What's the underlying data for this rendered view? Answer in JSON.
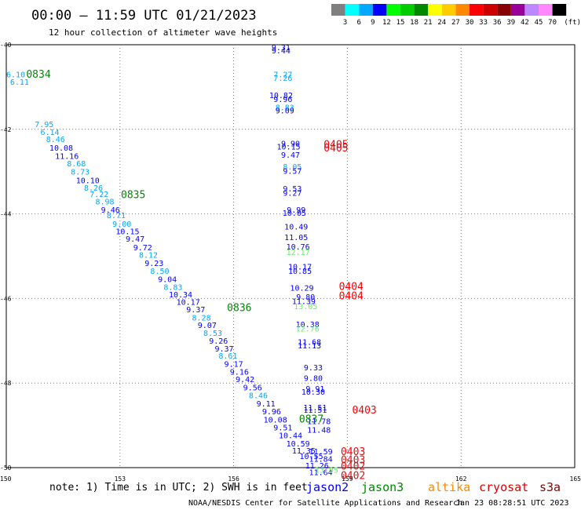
{
  "chart_data": {
    "type": "scatter",
    "title": "00:00 – 11:59 UTC 01/21/2023",
    "subtitle": "12 hour collection of altimeter wave heights",
    "x_ticks": [
      "150",
      "153",
      "156",
      "159",
      "162",
      "165"
    ],
    "y_ticks": [
      "-40",
      "-42",
      "-44",
      "-46",
      "-48",
      "-50"
    ],
    "xlim": [
      150,
      165
    ],
    "ylim": [
      -50,
      -40
    ],
    "grid": true,
    "colorbar": {
      "labels": [
        "3",
        "6",
        "9",
        "12",
        "15",
        "18",
        "21",
        "24",
        "27",
        "30",
        "33",
        "36",
        "39",
        "42",
        "45",
        "70"
      ],
      "unit": "(ft)",
      "colors": [
        "#7f7f7f",
        "#00ffff",
        "#00a8ff",
        "#0000ff",
        "#00ff00",
        "#00cc00",
        "#008800",
        "#ffff00",
        "#ffcc00",
        "#ff8800",
        "#ff0000",
        "#cc0000",
        "#880000",
        "#990099",
        "#bb88ff",
        "#ff88ff",
        "#000000"
      ]
    },
    "wave_labels": [
      {
        "text": "6.10",
        "x": 150.25,
        "y": -40.77,
        "c": "#00a8ff"
      },
      {
        "text": "6.11",
        "x": 150.35,
        "y": -40.95,
        "c": "#00a8ff"
      },
      {
        "text": "7.95",
        "x": 151.0,
        "y": -41.95,
        "c": "#00a8ff"
      },
      {
        "text": "6.14",
        "x": 151.15,
        "y": -42.13,
        "c": "#00a8ff"
      },
      {
        "text": "8.46",
        "x": 151.3,
        "y": -42.3,
        "c": "#00a8ff"
      },
      {
        "text": "10.08",
        "x": 151.45,
        "y": -42.5,
        "c": "#0000ff"
      },
      {
        "text": "11.16",
        "x": 151.6,
        "y": -42.7,
        "c": "#0000ff"
      },
      {
        "text": "8.68",
        "x": 151.85,
        "y": -42.88,
        "c": "#00a8ff"
      },
      {
        "text": "8.73",
        "x": 151.95,
        "y": -43.07,
        "c": "#00a8ff"
      },
      {
        "text": "10.10",
        "x": 152.15,
        "y": -43.27,
        "c": "#0000ff"
      },
      {
        "text": "8.26",
        "x": 152.3,
        "y": -43.45,
        "c": "#00a8ff"
      },
      {
        "text": "7.22",
        "x": 152.45,
        "y": -43.6,
        "c": "#00a8ff"
      },
      {
        "text": "8.98",
        "x": 152.6,
        "y": -43.78,
        "c": "#00a8ff"
      },
      {
        "text": "9.46",
        "x": 152.75,
        "y": -43.97,
        "c": "#0000ff"
      },
      {
        "text": "8.71",
        "x": 152.9,
        "y": -44.1,
        "c": "#00a8ff"
      },
      {
        "text": "9.00",
        "x": 153.05,
        "y": -44.3,
        "c": "#00a8ff"
      },
      {
        "text": "10.15",
        "x": 153.2,
        "y": -44.48,
        "c": "#0000ff"
      },
      {
        "text": "9.47",
        "x": 153.4,
        "y": -44.66,
        "c": "#0000ff"
      },
      {
        "text": "9.72",
        "x": 153.6,
        "y": -44.86,
        "c": "#0000ff"
      },
      {
        "text": "8.12",
        "x": 153.75,
        "y": -45.04,
        "c": "#00a8ff"
      },
      {
        "text": "9.23",
        "x": 153.9,
        "y": -45.23,
        "c": "#0000ff"
      },
      {
        "text": "8.50",
        "x": 154.05,
        "y": -45.42,
        "c": "#00a8ff"
      },
      {
        "text": "9.04",
        "x": 154.25,
        "y": -45.61,
        "c": "#0000ff"
      },
      {
        "text": "8.83",
        "x": 154.4,
        "y": -45.8,
        "c": "#00a8ff"
      },
      {
        "text": "10.34",
        "x": 154.6,
        "y": -45.97,
        "c": "#0000ff"
      },
      {
        "text": "10.17",
        "x": 154.8,
        "y": -46.15,
        "c": "#0000ff"
      },
      {
        "text": "9.37",
        "x": 155.0,
        "y": -46.33,
        "c": "#0000ff"
      },
      {
        "text": "8.28",
        "x": 155.15,
        "y": -46.52,
        "c": "#00a8ff"
      },
      {
        "text": "9.07",
        "x": 155.3,
        "y": -46.7,
        "c": "#0000ff"
      },
      {
        "text": "8.53",
        "x": 155.45,
        "y": -46.88,
        "c": "#00a8ff"
      },
      {
        "text": "9.26",
        "x": 155.6,
        "y": -47.07,
        "c": "#0000ff"
      },
      {
        "text": "9.37",
        "x": 155.75,
        "y": -47.25,
        "c": "#0000ff"
      },
      {
        "text": "8.61",
        "x": 155.85,
        "y": -47.42,
        "c": "#00a8ff"
      },
      {
        "text": "9.17",
        "x": 156.0,
        "y": -47.62,
        "c": "#0000ff"
      },
      {
        "text": "9.16",
        "x": 156.15,
        "y": -47.8,
        "c": "#0000ff"
      },
      {
        "text": "9.42",
        "x": 156.3,
        "y": -47.98,
        "c": "#0000ff"
      },
      {
        "text": "9.56",
        "x": 156.5,
        "y": -48.17,
        "c": "#0000ff"
      },
      {
        "text": "8.46",
        "x": 156.65,
        "y": -48.36,
        "c": "#00a8ff"
      },
      {
        "text": "9.11",
        "x": 156.85,
        "y": -48.55,
        "c": "#0000ff"
      },
      {
        "text": "9.96",
        "x": 157.0,
        "y": -48.74,
        "c": "#0000ff"
      },
      {
        "text": "10.08",
        "x": 157.1,
        "y": -48.93,
        "c": "#0000ff"
      },
      {
        "text": "9.51",
        "x": 157.3,
        "y": -49.12,
        "c": "#0000ff"
      },
      {
        "text": "10.44",
        "x": 157.5,
        "y": -49.3,
        "c": "#0000ff"
      },
      {
        "text": "10.59",
        "x": 157.7,
        "y": -49.5,
        "c": "#0000ff"
      },
      {
        "text": "11.35",
        "x": 157.85,
        "y": -49.67,
        "c": "#0000ff"
      },
      {
        "text": "10.55",
        "x": 158.05,
        "y": -49.8,
        "c": "#0000ff"
      },
      {
        "text": "11.26",
        "x": 158.2,
        "y": -50.02,
        "c": "#0000ff"
      },
      {
        "text": "11.64",
        "x": 158.3,
        "y": -50.18,
        "c": "#0000ff"
      },
      {
        "text": "9.31",
        "x": 157.25,
        "y": -40.13,
        "c": "#0000ff"
      },
      {
        "text": "9.44",
        "x": 157.25,
        "y": -40.2,
        "c": "#0000ff"
      },
      {
        "text": "7.27",
        "x": 157.3,
        "y": -40.77,
        "c": "#00a8ff"
      },
      {
        "text": "7.26",
        "x": 157.3,
        "y": -40.85,
        "c": "#00a8ff"
      },
      {
        "text": "10.82",
        "x": 157.25,
        "y": -41.26,
        "c": "#0000ff"
      },
      {
        "text": "9.96",
        "x": 157.3,
        "y": -41.35,
        "c": "#0000ff"
      },
      {
        "text": "8.83",
        "x": 157.35,
        "y": -41.55,
        "c": "#00a8ff"
      },
      {
        "text": "9.09",
        "x": 157.35,
        "y": -41.62,
        "c": "#0000ff"
      },
      {
        "text": "9.90",
        "x": 157.5,
        "y": -42.4,
        "c": "#0000ff"
      },
      {
        "text": "10.15",
        "x": 157.45,
        "y": -42.48,
        "c": "#0000ff"
      },
      {
        "text": "9.47",
        "x": 157.5,
        "y": -42.67,
        "c": "#0000ff"
      },
      {
        "text": "8.05",
        "x": 157.55,
        "y": -42.95,
        "c": "#00a8ff"
      },
      {
        "text": "9.57",
        "x": 157.55,
        "y": -43.05,
        "c": "#0000ff"
      },
      {
        "text": "9.53",
        "x": 157.55,
        "y": -43.47,
        "c": "#0000ff"
      },
      {
        "text": "9.27",
        "x": 157.55,
        "y": -43.57,
        "c": "#0000ff"
      },
      {
        "text": "9.99",
        "x": 157.65,
        "y": -43.97,
        "c": "#0000ff"
      },
      {
        "text": "10.05",
        "x": 157.6,
        "y": -44.04,
        "c": "#0000ff"
      },
      {
        "text": "10.49",
        "x": 157.65,
        "y": -44.37,
        "c": "#0000ff"
      },
      {
        "text": "11.05",
        "x": 157.65,
        "y": -44.62,
        "c": "#0000ff"
      },
      {
        "text": "10.76",
        "x": 157.7,
        "y": -44.84,
        "c": "#0000ff"
      },
      {
        "text": "12.17",
        "x": 157.7,
        "y": -44.97,
        "c": "#66ee66"
      },
      {
        "text": "10.17",
        "x": 157.75,
        "y": -45.32,
        "c": "#0000ff"
      },
      {
        "text": "10.85",
        "x": 157.75,
        "y": -45.42,
        "c": "#0000ff"
      },
      {
        "text": "10.29",
        "x": 157.8,
        "y": -45.82,
        "c": "#0000ff"
      },
      {
        "text": "9.80",
        "x": 157.9,
        "y": -46.03,
        "c": "#0000ff"
      },
      {
        "text": "11.39",
        "x": 157.85,
        "y": -46.13,
        "c": "#0000ff"
      },
      {
        "text": "13.05",
        "x": 157.9,
        "y": -46.25,
        "c": "#66ee66"
      },
      {
        "text": "10.38",
        "x": 157.95,
        "y": -46.68,
        "c": "#0000ff"
      },
      {
        "text": "12.76",
        "x": 157.95,
        "y": -46.78,
        "c": "#66ee66"
      },
      {
        "text": "11.68",
        "x": 158.0,
        "y": -47.1,
        "c": "#0000ff"
      },
      {
        "text": "11.13",
        "x": 158.0,
        "y": -47.18,
        "c": "#0000ff"
      },
      {
        "text": "9.33",
        "x": 158.1,
        "y": -47.7,
        "c": "#0000ff"
      },
      {
        "text": "9.80",
        "x": 158.1,
        "y": -47.95,
        "c": "#0000ff"
      },
      {
        "text": "9.91",
        "x": 158.15,
        "y": -48.2,
        "c": "#0000ff"
      },
      {
        "text": "10.30",
        "x": 158.1,
        "y": -48.27,
        "c": "#0000ff"
      },
      {
        "text": "11.51",
        "x": 158.15,
        "y": -48.65,
        "c": "#0000ff"
      },
      {
        "text": "11.51",
        "x": 158.15,
        "y": -48.7,
        "c": "#0000ff"
      },
      {
        "text": "11.78",
        "x": 158.25,
        "y": -48.97,
        "c": "#0000ff"
      },
      {
        "text": "11.48",
        "x": 158.25,
        "y": -49.17,
        "c": "#0000ff"
      },
      {
        "text": "11.59",
        "x": 158.3,
        "y": -49.68,
        "c": "#0000ff"
      },
      {
        "text": "11.84",
        "x": 158.3,
        "y": -49.86,
        "c": "#0000ff"
      },
      {
        "text": "13.05",
        "x": 158.45,
        "y": -50.12,
        "c": "#66ee66"
      }
    ],
    "pass_labels": [
      {
        "text": "0834",
        "x": 150.85,
        "y": -40.78,
        "c": "#008800"
      },
      {
        "text": "0835",
        "x": 153.35,
        "y": -43.63,
        "c": "#008800"
      },
      {
        "text": "0836",
        "x": 156.15,
        "y": -46.3,
        "c": "#008800"
      },
      {
        "text": "0837",
        "x": 158.05,
        "y": -48.93,
        "c": "#008800"
      },
      {
        "text": "0405",
        "x": 158.7,
        "y": -42.44,
        "c": "#ff0000"
      },
      {
        "text": "0405",
        "x": 158.7,
        "y": -42.52,
        "c": "#ff0000"
      },
      {
        "text": "0404",
        "x": 159.1,
        "y": -45.8,
        "c": "#ff0000"
      },
      {
        "text": "0404",
        "x": 159.1,
        "y": -46.02,
        "c": "#ff0000"
      },
      {
        "text": "0403",
        "x": 159.45,
        "y": -48.72,
        "c": "#ff0000"
      },
      {
        "text": "0403",
        "x": 159.15,
        "y": -49.7,
        "c": "#ff0000"
      },
      {
        "text": "0403",
        "x": 159.15,
        "y": -49.9,
        "c": "#ff0000"
      },
      {
        "text": "0402",
        "x": 159.15,
        "y": -50.05,
        "c": "#ff0000"
      },
      {
        "text": "0402",
        "x": 159.15,
        "y": -50.27,
        "c": "#ff0000"
      }
    ]
  },
  "note": "note: 1) Time is in UTC; 2) SWH is in feet",
  "satellites": [
    {
      "name": "jason2",
      "color": "#0000ff"
    },
    {
      "name": "jason3",
      "color": "#008800"
    },
    {
      "name": "altika",
      "color": "#ff8800"
    },
    {
      "name": "cryosat",
      "color": "#dd0000"
    },
    {
      "name": "s3a",
      "color": "#880000"
    }
  ],
  "credit_left": "NOAA/NESDIS Center for Satellite Applications and Research",
  "credit_right": "Jan 23 08:28:51 UTC 2023"
}
